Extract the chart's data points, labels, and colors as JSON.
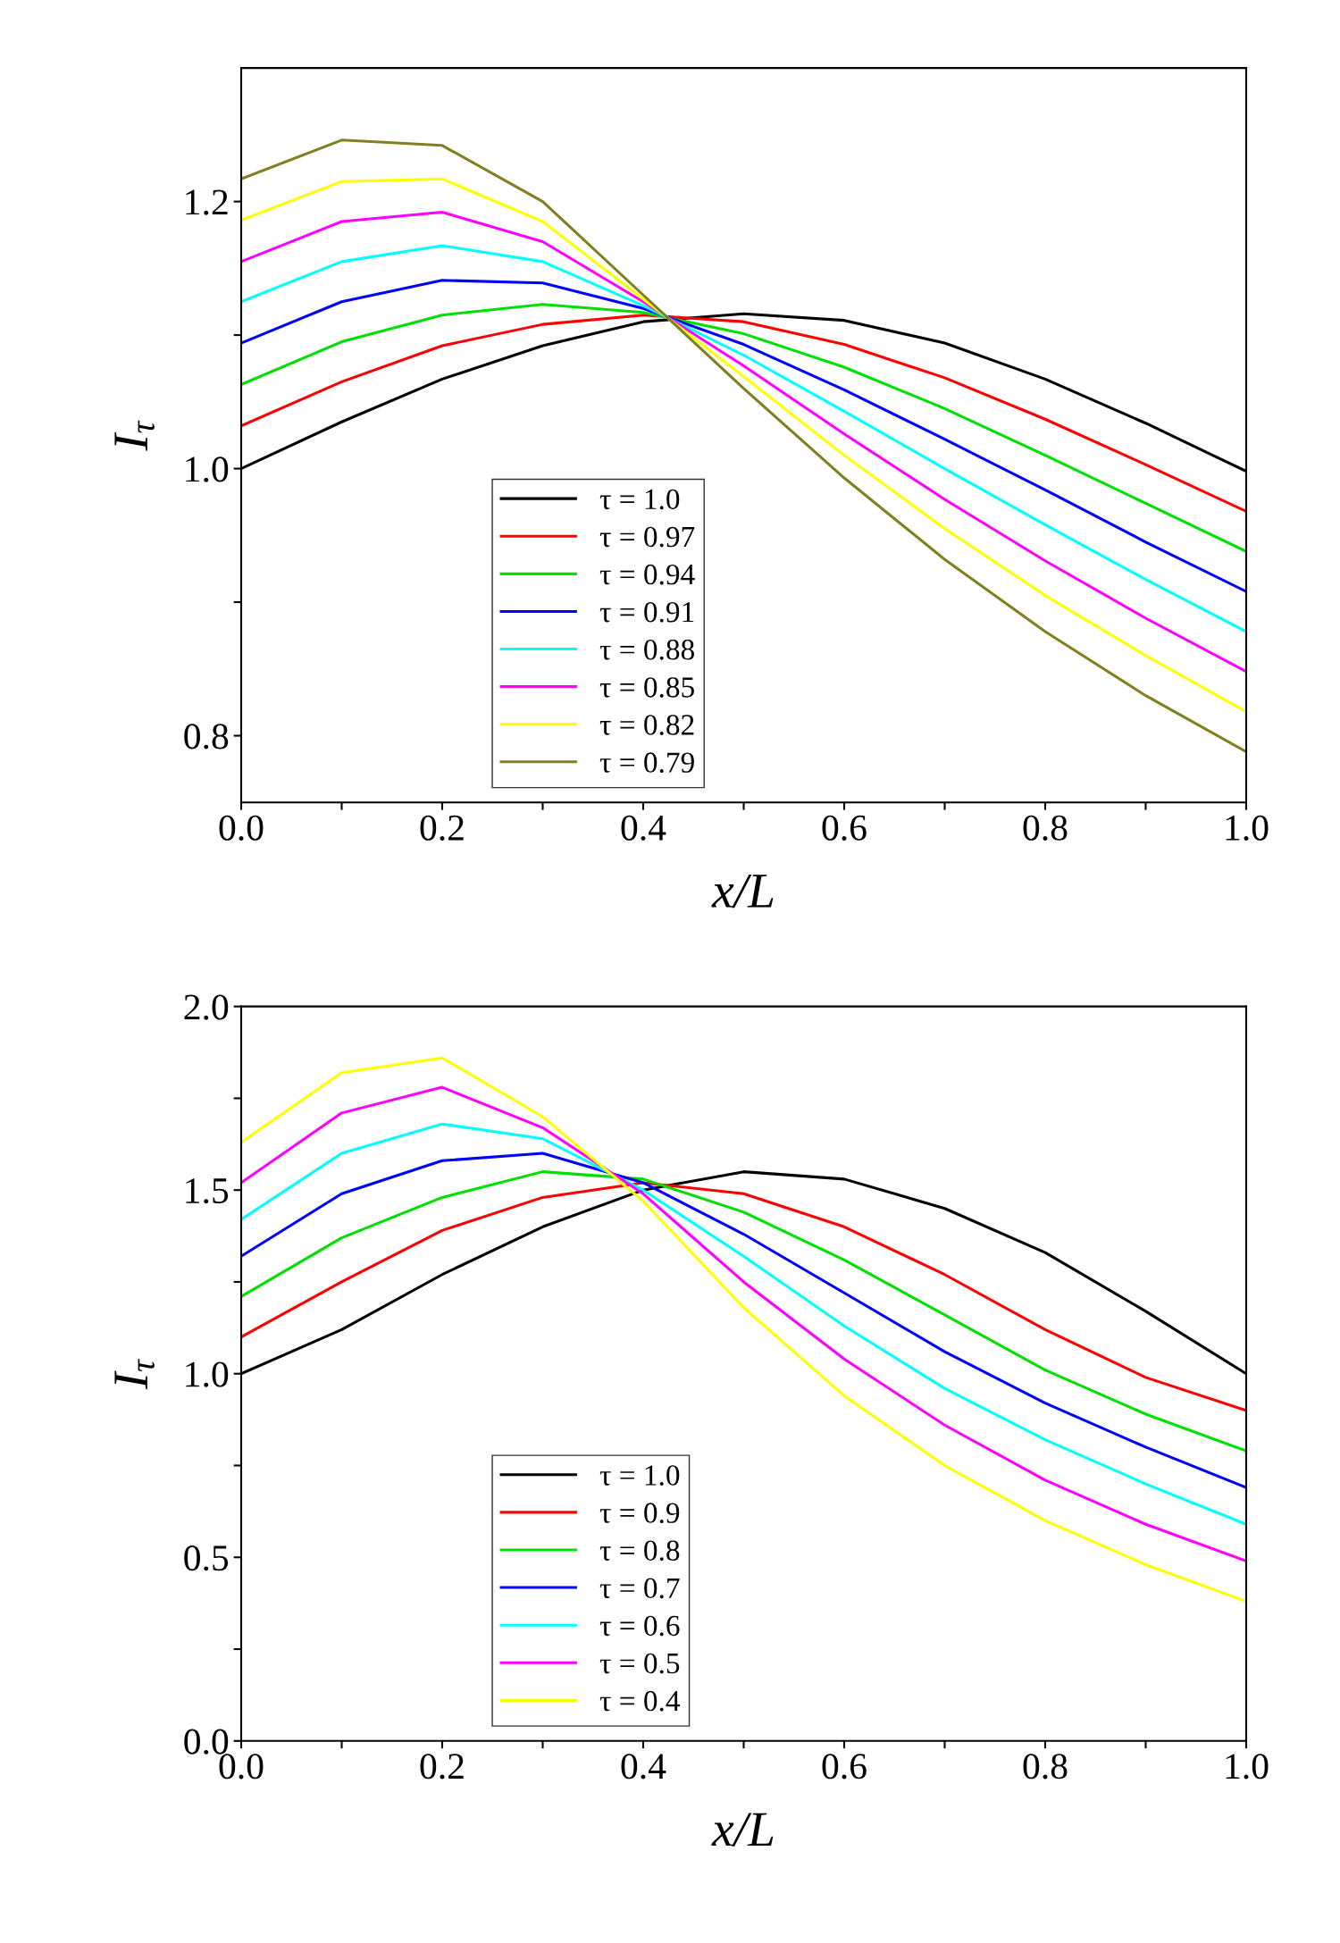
{
  "chart_data": [
    {
      "type": "line",
      "xlabel": "x/L",
      "ylabel": "I$_{τ}$",
      "xlim": [
        0.0,
        1.0
      ],
      "ylim": [
        0.75,
        1.3
      ],
      "xticks": [
        {
          "value": 0.0,
          "label": "0.0"
        },
        {
          "value": 0.1,
          "label": null
        },
        {
          "value": 0.2,
          "label": "0.2"
        },
        {
          "value": 0.3,
          "label": null
        },
        {
          "value": 0.4,
          "label": "0.4"
        },
        {
          "value": 0.5,
          "label": null
        },
        {
          "value": 0.6,
          "label": "0.6"
        },
        {
          "value": 0.7,
          "label": null
        },
        {
          "value": 0.8,
          "label": "0.8"
        },
        {
          "value": 0.9,
          "label": null
        },
        {
          "value": 1.0,
          "label": "1.0"
        }
      ],
      "yticks": [
        {
          "value": 0.8,
          "label": "0.8"
        },
        {
          "value": 0.9,
          "label": null
        },
        {
          "value": 1.0,
          "label": "1.0"
        },
        {
          "value": 1.1,
          "label": null
        },
        {
          "value": 1.2,
          "label": "1.2"
        }
      ],
      "x": [
        0.0,
        0.1,
        0.2,
        0.3,
        0.4,
        0.5,
        0.6,
        0.7,
        0.8,
        0.9,
        1.0
      ],
      "legend": "bottom left",
      "grid": false,
      "marker": "none",
      "line_style": "solid",
      "series": [
        {
          "name": "τ = 1.0",
          "color": "#000000",
          "values": [
            1.0,
            1.035,
            1.067,
            1.092,
            1.11,
            1.116,
            1.111,
            1.094,
            1.067,
            1.034,
            0.998
          ]
        },
        {
          "name": "τ = 0.97",
          "color": "#ff0000",
          "values": [
            1.032,
            1.065,
            1.092,
            1.108,
            1.115,
            1.11,
            1.093,
            1.068,
            1.037,
            1.003,
            0.968
          ]
        },
        {
          "name": "τ = 0.94",
          "color": "#00e000",
          "values": [
            1.063,
            1.095,
            1.115,
            1.123,
            1.117,
            1.101,
            1.076,
            1.045,
            1.01,
            0.974,
            0.938
          ]
        },
        {
          "name": "τ = 0.91",
          "color": "#0000ff",
          "values": [
            1.094,
            1.125,
            1.141,
            1.139,
            1.12,
            1.093,
            1.059,
            1.022,
            0.984,
            0.945,
            0.908
          ]
        },
        {
          "name": "τ = 0.88",
          "color": "#00ffff",
          "values": [
            1.125,
            1.155,
            1.167,
            1.155,
            1.122,
            1.085,
            1.043,
            1.0,
            0.958,
            0.917,
            0.878
          ]
        },
        {
          "name": "τ = 0.85",
          "color": "#ff00ff",
          "values": [
            1.155,
            1.185,
            1.192,
            1.17,
            1.125,
            1.077,
            1.026,
            0.977,
            0.931,
            0.888,
            0.848
          ]
        },
        {
          "name": "τ = 0.82",
          "color": "#ffff00",
          "values": [
            1.186,
            1.215,
            1.217,
            1.185,
            1.127,
            1.069,
            1.01,
            0.955,
            0.905,
            0.86,
            0.818
          ]
        },
        {
          "name": "τ = 0.79",
          "color": "#808020",
          "values": [
            1.217,
            1.246,
            1.242,
            1.2,
            1.13,
            1.06,
            0.993,
            0.932,
            0.878,
            0.83,
            0.788
          ]
        }
      ]
    },
    {
      "type": "line",
      "xlabel": "x/L",
      "ylabel": "I$_{τ}$",
      "xlim": [
        0.0,
        1.0
      ],
      "ylim": [
        0.0,
        2.0
      ],
      "xticks": [
        {
          "value": 0.0,
          "label": "0.0"
        },
        {
          "value": 0.1,
          "label": null
        },
        {
          "value": 0.2,
          "label": "0.2"
        },
        {
          "value": 0.3,
          "label": null
        },
        {
          "value": 0.4,
          "label": "0.4"
        },
        {
          "value": 0.5,
          "label": null
        },
        {
          "value": 0.6,
          "label": "0.6"
        },
        {
          "value": 0.7,
          "label": null
        },
        {
          "value": 0.8,
          "label": "0.8"
        },
        {
          "value": 0.9,
          "label": null
        },
        {
          "value": 1.0,
          "label": "1.0"
        }
      ],
      "yticks": [
        {
          "value": 0.0,
          "label": "0.0"
        },
        {
          "value": 0.25,
          "label": null
        },
        {
          "value": 0.5,
          "label": "0.5"
        },
        {
          "value": 0.75,
          "label": null
        },
        {
          "value": 1.0,
          "label": "1.0"
        },
        {
          "value": 1.25,
          "label": null
        },
        {
          "value": 1.5,
          "label": "1.5"
        },
        {
          "value": 1.75,
          "label": null
        },
        {
          "value": 2.0,
          "label": "2.0"
        }
      ],
      "x": [
        0.0,
        0.1,
        0.2,
        0.3,
        0.4,
        0.5,
        0.6,
        0.7,
        0.8,
        0.9,
        1.0
      ],
      "legend": "bottom left",
      "grid": false,
      "marker": "none",
      "line_style": "solid",
      "series": [
        {
          "name": "τ = 1.0",
          "color": "#000000",
          "values": [
            1.0,
            1.12,
            1.27,
            1.4,
            1.5,
            1.55,
            1.53,
            1.45,
            1.33,
            1.17,
            1.0
          ]
        },
        {
          "name": "τ = 0.9",
          "color": "#ff0000",
          "values": [
            1.1,
            1.25,
            1.39,
            1.48,
            1.52,
            1.49,
            1.4,
            1.27,
            1.12,
            0.99,
            0.9
          ]
        },
        {
          "name": "τ = 0.8",
          "color": "#00e000",
          "values": [
            1.21,
            1.37,
            1.48,
            1.55,
            1.53,
            1.44,
            1.31,
            1.16,
            1.01,
            0.89,
            0.79
          ]
        },
        {
          "name": "τ = 0.7",
          "color": "#0000ff",
          "values": [
            1.32,
            1.49,
            1.58,
            1.6,
            1.52,
            1.38,
            1.22,
            1.06,
            0.92,
            0.8,
            0.69
          ]
        },
        {
          "name": "τ = 0.6",
          "color": "#00ffff",
          "values": [
            1.42,
            1.6,
            1.68,
            1.64,
            1.5,
            1.32,
            1.13,
            0.96,
            0.82,
            0.7,
            0.59
          ]
        },
        {
          "name": "τ = 0.5",
          "color": "#ff00ff",
          "values": [
            1.52,
            1.71,
            1.78,
            1.67,
            1.49,
            1.25,
            1.04,
            0.86,
            0.71,
            0.59,
            0.49
          ]
        },
        {
          "name": "τ = 0.4",
          "color": "#ffff00",
          "values": [
            1.63,
            1.82,
            1.86,
            1.7,
            1.47,
            1.18,
            0.94,
            0.75,
            0.6,
            0.48,
            0.38
          ]
        }
      ]
    }
  ]
}
